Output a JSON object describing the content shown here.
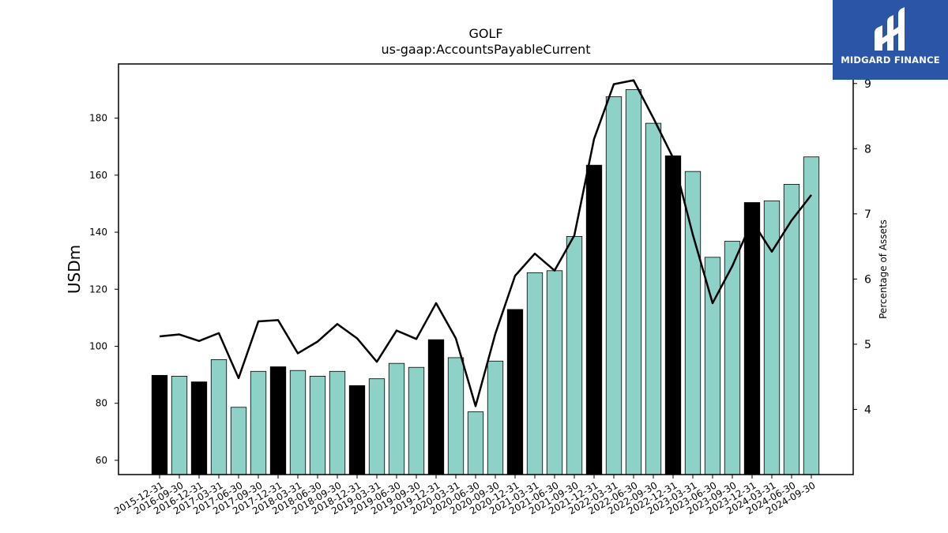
{
  "chart_data": {
    "type": "bar+line",
    "title": "GOLF",
    "subtitle": "us-gaap:AccountsPayableCurrent",
    "ylabel": "USDm",
    "y2label": "Percentage of Assets",
    "ylim": [
      55,
      199
    ],
    "y2lim": [
      3.0,
      9.3
    ],
    "yticks": [
      "60",
      "80",
      "100",
      "120",
      "140",
      "160",
      "180"
    ],
    "y2ticks": [
      "4",
      "5",
      "6",
      "7",
      "8",
      "9"
    ],
    "categories": [
      "2015-12-31",
      "2016-09-30",
      "2016-12-31",
      "2017-03-31",
      "2017-06-30",
      "2017-09-30",
      "2017-12-31",
      "2018-03-31",
      "2018-06-30",
      "2018-09-30",
      "2018-12-31",
      "2019-03-31",
      "2019-06-30",
      "2019-09-30",
      "2019-12-31",
      "2020-03-31",
      "2020-06-30",
      "2020-09-30",
      "2020-12-31",
      "2021-03-31",
      "2021-06-30",
      "2021-09-30",
      "2021-12-31",
      "2022-03-31",
      "2022-06-30",
      "2022-09-30",
      "2022-12-31",
      "2023-03-31",
      "2023-06-30",
      "2023-09-30",
      "2023-12-31",
      "2024-03-31",
      "2024-06-30",
      "2024-09-30"
    ],
    "values": [
      89.8,
      89.5,
      87.5,
      95.3,
      78.6,
      91.2,
      92.8,
      91.5,
      89.5,
      91.2,
      86.2,
      88.6,
      94.0,
      92.6,
      102.3,
      96.0,
      77.0,
      94.8,
      112.9,
      125.8,
      126.5,
      138.5,
      163.5,
      187.5,
      190.0,
      178.2,
      166.8,
      161.3,
      131.2,
      136.8,
      150.4,
      151.0,
      156.8,
      166.4
    ],
    "year_end": [
      true,
      false,
      true,
      false,
      false,
      false,
      true,
      false,
      false,
      false,
      true,
      false,
      false,
      false,
      true,
      false,
      false,
      false,
      true,
      false,
      false,
      false,
      true,
      false,
      false,
      false,
      true,
      false,
      false,
      false,
      true,
      false,
      false,
      false
    ],
    "pct_of_assets": [
      5.12,
      5.15,
      5.05,
      5.17,
      4.48,
      5.35,
      5.37,
      4.86,
      5.04,
      5.31,
      5.09,
      4.73,
      5.21,
      5.08,
      5.63,
      5.09,
      4.05,
      5.16,
      6.05,
      6.39,
      6.13,
      6.67,
      8.15,
      8.99,
      9.05,
      8.47,
      7.86,
      6.68,
      5.63,
      6.2,
      6.89,
      6.42,
      6.9,
      7.29
    ],
    "colors": {
      "bar": "#8ed1c6",
      "bar_year_end": "#000000",
      "line": "#000000",
      "bar_edge": "#000000"
    },
    "grid": false,
    "legend": "none"
  },
  "logo": {
    "text": "MIDGARD FINANCE"
  }
}
